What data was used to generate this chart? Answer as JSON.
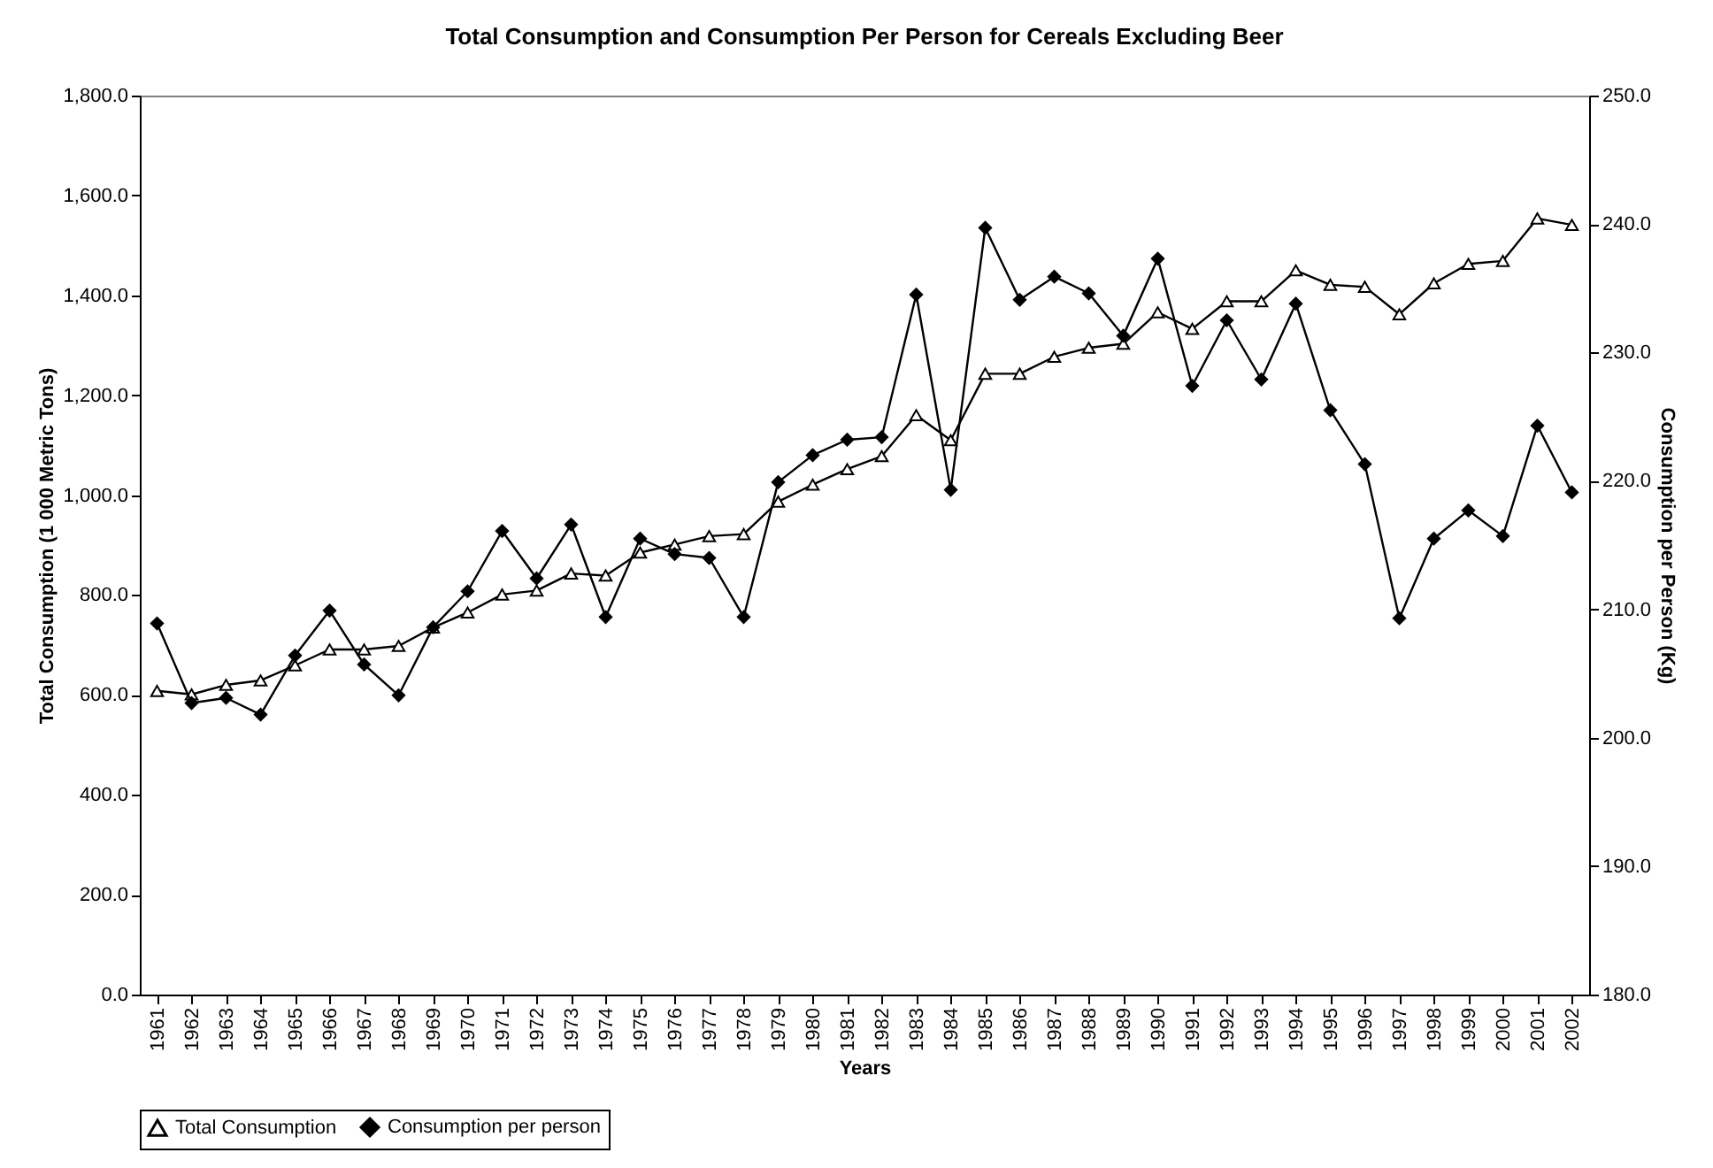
{
  "chart_data": {
    "type": "line",
    "title": "Total Consumption and Consumption Per Person for Cereals Excluding Beer",
    "xlabel": "Years",
    "ylabel": "Total Consumption (1 000 Metric Tons)",
    "y2label": "Consumption per Person (Kg)",
    "categories": [
      "1961",
      "1962",
      "1963",
      "1964",
      "1965",
      "1966",
      "1967",
      "1968",
      "1969",
      "1970",
      "1971",
      "1972",
      "1973",
      "1974",
      "1975",
      "1976",
      "1977",
      "1978",
      "1979",
      "1980",
      "1981",
      "1982",
      "1983",
      "1984",
      "1985",
      "1986",
      "1987",
      "1988",
      "1989",
      "1990",
      "1991",
      "1992",
      "1993",
      "1994",
      "1995",
      "1996",
      "1997",
      "1998",
      "1999",
      "2000",
      "2001",
      "2002"
    ],
    "series": [
      {
        "name": "Total Consumption",
        "color": "#000000",
        "marker": "triangle",
        "values": [
          608,
          601,
          620,
          629,
          659,
          691,
          691,
          698,
          735,
          765,
          801,
          809,
          843,
          839,
          885,
          901,
          918,
          922,
          987,
          1021,
          1052,
          1078,
          1160,
          1110,
          1243,
          1243,
          1277,
          1295,
          1303,
          1366,
          1333,
          1388,
          1388,
          1450,
          1421,
          1417,
          1362,
          1424,
          1463,
          1469,
          1554,
          1541
        ]
      },
      {
        "name": "Consumption per person",
        "color": "#000000",
        "marker": "diamond",
        "axis": "y2",
        "values": [
          208.9,
          202.7,
          203.1,
          201.8,
          206.4,
          209.9,
          205.7,
          203.3,
          208.6,
          211.4,
          216.1,
          212.4,
          216.6,
          209.4,
          215.5,
          214.3,
          214.0,
          209.4,
          219.9,
          222.0,
          223.2,
          223.4,
          234.5,
          219.3,
          239.7,
          234.1,
          235.9,
          234.6,
          231.3,
          237.3,
          227.4,
          232.5,
          227.9,
          233.8,
          225.5,
          221.3,
          209.3,
          215.5,
          217.7,
          215.7,
          224.3,
          219.1
        ]
      }
    ],
    "ylim": [
      0,
      1800
    ],
    "yticks": [
      {
        "value": 0,
        "label": "0.0"
      },
      {
        "value": 200,
        "label": "200.0"
      },
      {
        "value": 400,
        "label": "400.0"
      },
      {
        "value": 600,
        "label": "600.0"
      },
      {
        "value": 800,
        "label": "800.0"
      },
      {
        "value": 1000,
        "label": "1,000.0"
      },
      {
        "value": 1200,
        "label": "1,200.0"
      },
      {
        "value": 1400,
        "label": "1,400.0"
      },
      {
        "value": 1600,
        "label": "1,600.0"
      },
      {
        "value": 1800,
        "label": "1,800.0"
      }
    ],
    "y2lim": [
      180,
      250
    ],
    "y2ticks": [
      {
        "value": 180,
        "label": "180.0"
      },
      {
        "value": 190,
        "label": "190.0"
      },
      {
        "value": 200,
        "label": "200.0"
      },
      {
        "value": 210,
        "label": "210.0"
      },
      {
        "value": 220,
        "label": "220.0"
      },
      {
        "value": 230,
        "label": "230.0"
      },
      {
        "value": 240,
        "label": "240.0"
      },
      {
        "value": 250,
        "label": "250.0"
      }
    ],
    "legend": "bottom",
    "line_style": "solid"
  }
}
